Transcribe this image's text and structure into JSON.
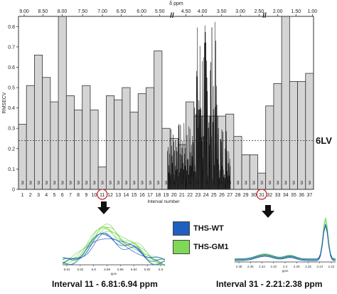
{
  "chart_data": {
    "type": "bar",
    "top_axis_label": "δ ppm",
    "top_ticks": [
      "9.00",
      "8.50",
      "8.00",
      "7.50",
      "7.00",
      "6.50",
      "6.00",
      "5.50",
      "4.50",
      "4.00",
      "3.50",
      "3.00",
      "2.50",
      "2.00",
      "1.50",
      "1.00"
    ],
    "xlabel": "Interval number",
    "ylabel": "RMSECV",
    "ylim": [
      0,
      0.85
    ],
    "yticks": [
      "0",
      "0.1",
      "0.2",
      "0.3",
      "0.4",
      "0.5",
      "0.6",
      "0.7",
      "0.8"
    ],
    "categories": [
      "1",
      "2",
      "3",
      "4",
      "5",
      "6",
      "7",
      "8",
      "9",
      "10",
      "11",
      "12",
      "13",
      "14",
      "15",
      "16",
      "17",
      "18",
      "19",
      "20",
      "21",
      "22",
      "23",
      "24",
      "25",
      "26",
      "27",
      "28",
      "29",
      "30",
      "31",
      "32",
      "33",
      "34",
      "35",
      "36",
      "37"
    ],
    "values": [
      0.32,
      0.51,
      0.66,
      0.55,
      0.43,
      0.85,
      0.46,
      0.39,
      0.51,
      0.39,
      0.11,
      0.46,
      0.44,
      0.5,
      0.38,
      0.47,
      0.5,
      0.68,
      0.3,
      0.25,
      0.22,
      0.43,
      0.36,
      0.36,
      0.36,
      0.36,
      0.37,
      0.26,
      0.17,
      0.17,
      0.08,
      0.41,
      0.52,
      0.85,
      0.53,
      0.53,
      0.57
    ],
    "bar_labels": [
      "3",
      "3",
      "3",
      "3",
      "3",
      "3",
      "3",
      "3",
      "3",
      "3",
      "3",
      "3",
      "3",
      "3",
      "3",
      "3",
      "3",
      "3",
      "3",
      "3",
      "3",
      "3",
      "3",
      "3",
      "3",
      "3",
      "3",
      "3",
      "3",
      "3",
      "3",
      "3",
      "3",
      "3",
      "3",
      "3",
      "3"
    ],
    "reference_value": 0.24,
    "reference_label": "6LV",
    "highlighted": [
      "11",
      "31"
    ],
    "legend": [
      {
        "label": "THS-WT",
        "color": "#1f5fbf"
      },
      {
        "label": "THS-GM1",
        "color": "#7ed957"
      }
    ],
    "insets": [
      {
        "caption": "Interval 11 - 6.81:6.94 ppm",
        "ticks": [
          "6.94",
          "6.92",
          "6.9",
          "6.88",
          "6.86",
          "6.84",
          "6.82",
          "6.8"
        ],
        "xlabel": "ppm"
      },
      {
        "caption": "Interval 31 - 2.21:2.38 ppm",
        "ticks": [
          "2.38",
          "2.36",
          "2.34",
          "2.32",
          "2.3",
          "2.28",
          "2.26",
          "2.24",
          "2.22"
        ],
        "xlabel": "ppm"
      }
    ]
  }
}
